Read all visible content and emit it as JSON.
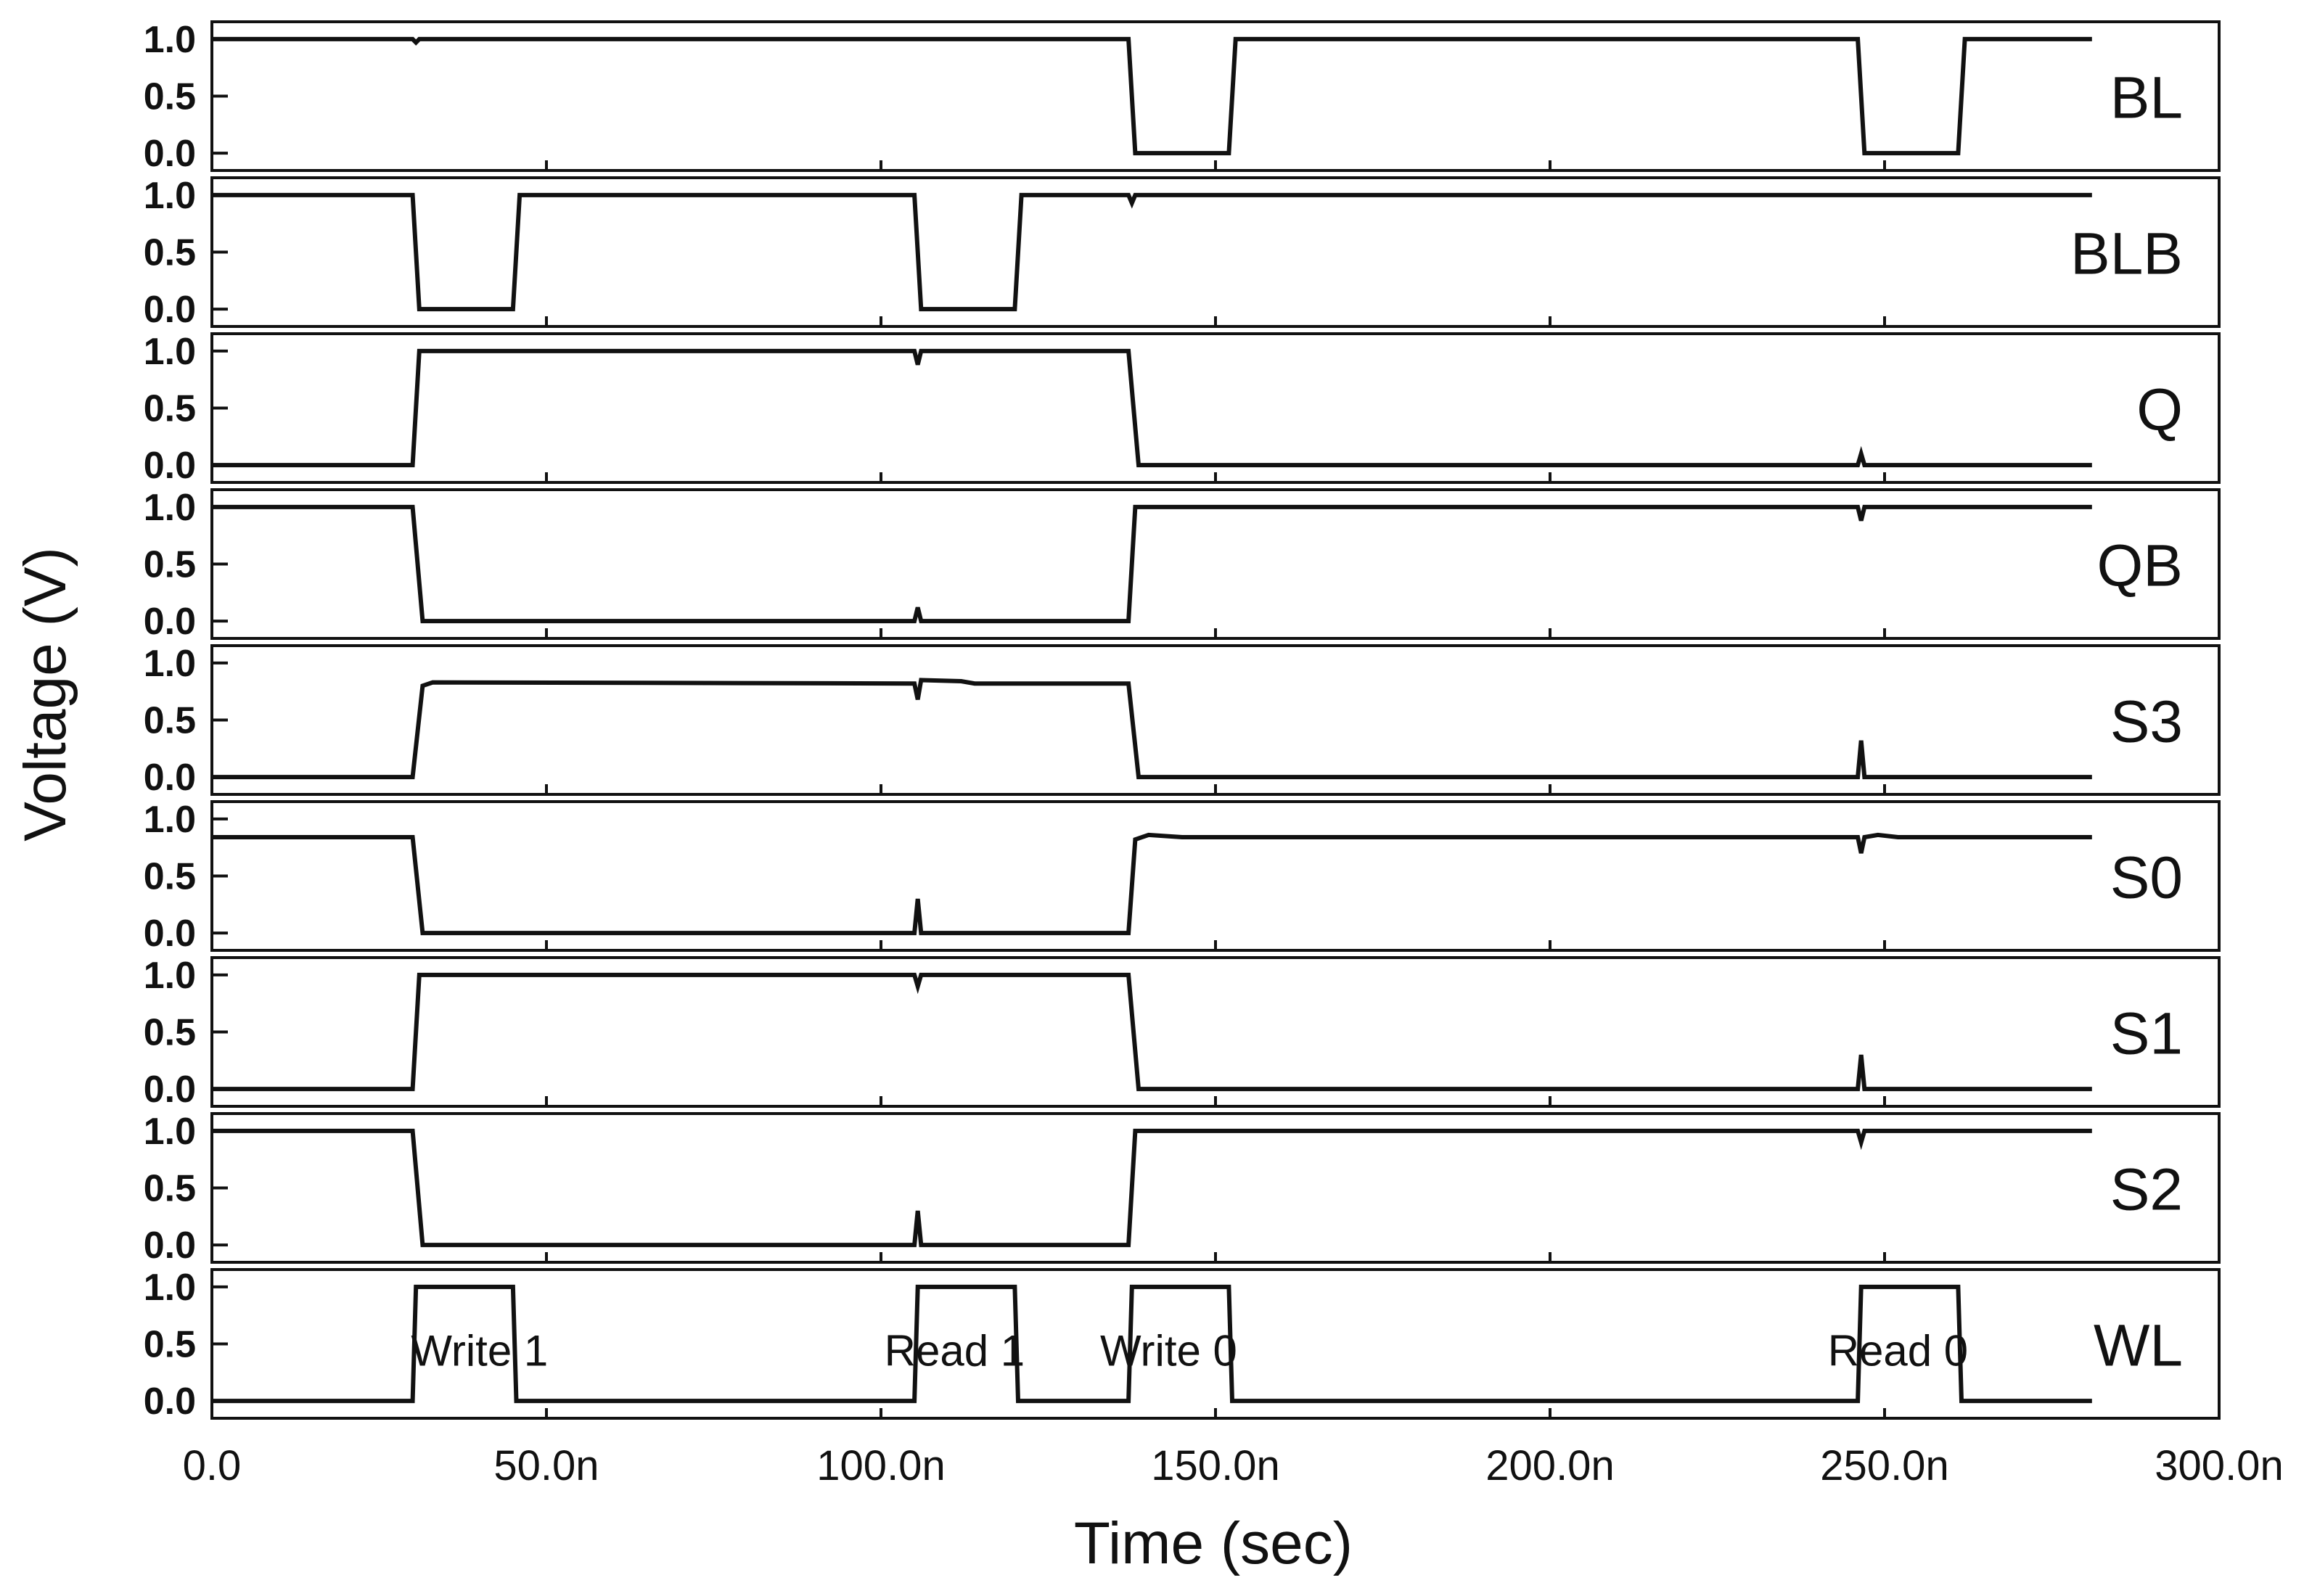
{
  "chart_data": {
    "type": "line",
    "title": "",
    "xlabel": "Time (sec)",
    "ylabel": "Voltage (V)",
    "xlim": [
      0,
      300
    ],
    "x_unit": "ns",
    "x_tick_values": [
      0,
      50,
      100,
      150,
      200,
      250,
      300
    ],
    "x_tick_labels": [
      "0.0",
      "50.0n",
      "100.0n",
      "150.0n",
      "200.0n",
      "250.0n",
      "300.0n"
    ],
    "y_tick_values": [
      0,
      0.5,
      1.0
    ],
    "y_tick_labels": [
      "0.0",
      "0.5",
      "1.0"
    ],
    "ylim_per_panel": [
      -0.05,
      1.05
    ],
    "grid": false,
    "legend": "none",
    "line_color": "#111111",
    "series": [
      {
        "name": "BL",
        "points": [
          [
            0,
            1.0
          ],
          [
            30,
            1.0
          ],
          [
            30.5,
            0.97
          ],
          [
            31,
            1.0
          ],
          [
            137,
            1.0
          ],
          [
            138,
            0.0
          ],
          [
            152,
            0.0
          ],
          [
            153,
            1.0
          ],
          [
            246,
            1.0
          ],
          [
            247,
            0.0
          ],
          [
            261,
            0.0
          ],
          [
            262,
            1.0
          ],
          [
            281,
            1.0
          ]
        ]
      },
      {
        "name": "BLB",
        "points": [
          [
            0,
            1.0
          ],
          [
            30,
            1.0
          ],
          [
            31,
            0.0
          ],
          [
            45,
            0.0
          ],
          [
            46,
            1.0
          ],
          [
            105,
            1.0
          ],
          [
            106,
            0.0
          ],
          [
            120,
            0.0
          ],
          [
            121,
            1.0
          ],
          [
            137,
            1.0
          ],
          [
            137.5,
            0.93
          ],
          [
            138,
            1.0
          ],
          [
            281,
            1.0
          ]
        ]
      },
      {
        "name": "Q",
        "points": [
          [
            0,
            0.0
          ],
          [
            30,
            0.0
          ],
          [
            31,
            1.0
          ],
          [
            105,
            1.0
          ],
          [
            105.5,
            0.88
          ],
          [
            106,
            1.0
          ],
          [
            137,
            1.0
          ],
          [
            138.5,
            0.0
          ],
          [
            246,
            0.0
          ],
          [
            246.5,
            0.1
          ],
          [
            247,
            0.0
          ],
          [
            281,
            0.0
          ]
        ]
      },
      {
        "name": "QB",
        "points": [
          [
            0,
            1.0
          ],
          [
            30,
            1.0
          ],
          [
            31.5,
            0.0
          ],
          [
            105,
            0.0
          ],
          [
            105.5,
            0.12
          ],
          [
            106,
            0.0
          ],
          [
            137,
            0.0
          ],
          [
            138,
            1.0
          ],
          [
            246,
            1.0
          ],
          [
            246.5,
            0.88
          ],
          [
            247,
            1.0
          ],
          [
            281,
            1.0
          ]
        ]
      },
      {
        "name": "S3",
        "points": [
          [
            0,
            0.0
          ],
          [
            30,
            0.0
          ],
          [
            31.5,
            0.8
          ],
          [
            33,
            0.83
          ],
          [
            105,
            0.82
          ],
          [
            105.5,
            0.68
          ],
          [
            106,
            0.85
          ],
          [
            112,
            0.84
          ],
          [
            114,
            0.82
          ],
          [
            137,
            0.82
          ],
          [
            138.5,
            0.0
          ],
          [
            246,
            0.0
          ],
          [
            246.5,
            0.32
          ],
          [
            247,
            0.0
          ],
          [
            281,
            0.0
          ]
        ]
      },
      {
        "name": "S0",
        "points": [
          [
            0,
            0.84
          ],
          [
            30,
            0.84
          ],
          [
            31.5,
            0.0
          ],
          [
            105,
            0.0
          ],
          [
            105.5,
            0.3
          ],
          [
            106,
            0.0
          ],
          [
            137,
            0.0
          ],
          [
            138,
            0.82
          ],
          [
            140,
            0.86
          ],
          [
            145,
            0.84
          ],
          [
            246,
            0.84
          ],
          [
            246.5,
            0.7
          ],
          [
            247,
            0.84
          ],
          [
            249,
            0.86
          ],
          [
            252,
            0.84
          ],
          [
            281,
            0.84
          ]
        ]
      },
      {
        "name": "S1",
        "points": [
          [
            0,
            0.0
          ],
          [
            30,
            0.0
          ],
          [
            31,
            1.0
          ],
          [
            105,
            1.0
          ],
          [
            105.5,
            0.9
          ],
          [
            106,
            1.0
          ],
          [
            137,
            1.0
          ],
          [
            138.5,
            0.0
          ],
          [
            246,
            0.0
          ],
          [
            246.5,
            0.3
          ],
          [
            247,
            0.0
          ],
          [
            281,
            0.0
          ]
        ]
      },
      {
        "name": "S2",
        "points": [
          [
            0,
            1.0
          ],
          [
            30,
            1.0
          ],
          [
            31.5,
            0.0
          ],
          [
            105,
            0.0
          ],
          [
            105.5,
            0.3
          ],
          [
            106,
            0.0
          ],
          [
            137,
            0.0
          ],
          [
            138,
            1.0
          ],
          [
            246,
            1.0
          ],
          [
            246.5,
            0.9
          ],
          [
            247,
            1.0
          ],
          [
            281,
            1.0
          ]
        ]
      },
      {
        "name": "WL",
        "points": [
          [
            0,
            0.0
          ],
          [
            30,
            0.0
          ],
          [
            30.5,
            1.0
          ],
          [
            45,
            1.0
          ],
          [
            45.5,
            0.0
          ],
          [
            105,
            0.0
          ],
          [
            105.5,
            1.0
          ],
          [
            120,
            1.0
          ],
          [
            120.5,
            0.0
          ],
          [
            137,
            0.0
          ],
          [
            137.5,
            1.0
          ],
          [
            152,
            1.0
          ],
          [
            152.5,
            0.0
          ],
          [
            246,
            0.0
          ],
          [
            246.5,
            1.0
          ],
          [
            261,
            1.0
          ],
          [
            261.5,
            0.0
          ],
          [
            281,
            0.0
          ]
        ]
      }
    ],
    "annotations": [
      {
        "text": "Write 1",
        "x": 40,
        "y": 0.45
      },
      {
        "text": "Read 1",
        "x": 111,
        "y": 0.45
      },
      {
        "text": "Write 0",
        "x": 143,
        "y": 0.45
      },
      {
        "text": "Read 0",
        "x": 252,
        "y": 0.45
      }
    ]
  }
}
